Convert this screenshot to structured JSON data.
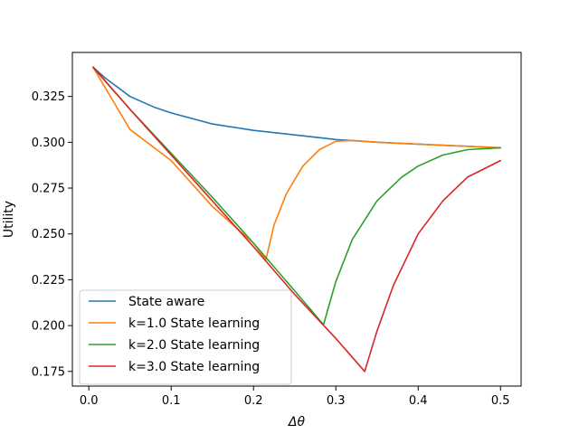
{
  "chart_data": {
    "type": "line",
    "title": "",
    "xlabel": "Δθ",
    "ylabel": "Utility",
    "xlim": [
      -0.02,
      0.525
    ],
    "ylim": [
      0.167,
      0.349
    ],
    "x_ticks": [
      0.0,
      0.1,
      0.2,
      0.3,
      0.4,
      0.5
    ],
    "x_tick_labels": [
      "0.0",
      "0.1",
      "0.2",
      "0.3",
      "0.4",
      "0.5"
    ],
    "y_ticks": [
      0.175,
      0.2,
      0.225,
      0.25,
      0.275,
      0.3,
      0.325
    ],
    "y_tick_labels": [
      "0.175",
      "0.200",
      "0.225",
      "0.250",
      "0.275",
      "0.300",
      "0.325"
    ],
    "grid": false,
    "legend": {
      "position": "lower-left"
    },
    "series": [
      {
        "name": "State aware",
        "color": "#1f77b4",
        "x": [
          0.005,
          0.02,
          0.05,
          0.08,
          0.1,
          0.15,
          0.2,
          0.25,
          0.3,
          0.35,
          0.4,
          0.45,
          0.5
        ],
        "y": [
          0.341,
          0.335,
          0.325,
          0.319,
          0.316,
          0.31,
          0.3065,
          0.304,
          0.3015,
          0.3,
          0.299,
          0.298,
          0.297
        ]
      },
      {
        "name": "k=1.0 State learning",
        "color": "#ff7f0e",
        "x": [
          0.005,
          0.05,
          0.1,
          0.15,
          0.2,
          0.215,
          0.225,
          0.24,
          0.26,
          0.28,
          0.3,
          0.32,
          0.35,
          0.4,
          0.45,
          0.5
        ],
        "y": [
          0.341,
          0.307,
          0.29,
          0.265,
          0.245,
          0.236,
          0.255,
          0.272,
          0.287,
          0.296,
          0.3005,
          0.301,
          0.3,
          0.299,
          0.298,
          0.297
        ]
      },
      {
        "name": "k=2.0 State learning",
        "color": "#2ca02c",
        "x": [
          0.005,
          0.05,
          0.1,
          0.15,
          0.2,
          0.25,
          0.285,
          0.3,
          0.32,
          0.35,
          0.38,
          0.4,
          0.43,
          0.46,
          0.5
        ],
        "y": [
          0.341,
          0.318,
          0.294,
          0.27,
          0.245,
          0.219,
          0.2005,
          0.224,
          0.247,
          0.268,
          0.281,
          0.287,
          0.293,
          0.296,
          0.297
        ]
      },
      {
        "name": "k=3.0 State learning",
        "color": "#d62728",
        "x": [
          0.005,
          0.05,
          0.1,
          0.15,
          0.2,
          0.25,
          0.3,
          0.335,
          0.35,
          0.37,
          0.4,
          0.43,
          0.46,
          0.5
        ],
        "y": [
          0.341,
          0.318,
          0.293,
          0.268,
          0.243,
          0.217,
          0.193,
          0.175,
          0.197,
          0.222,
          0.25,
          0.268,
          0.281,
          0.29
        ]
      }
    ]
  }
}
